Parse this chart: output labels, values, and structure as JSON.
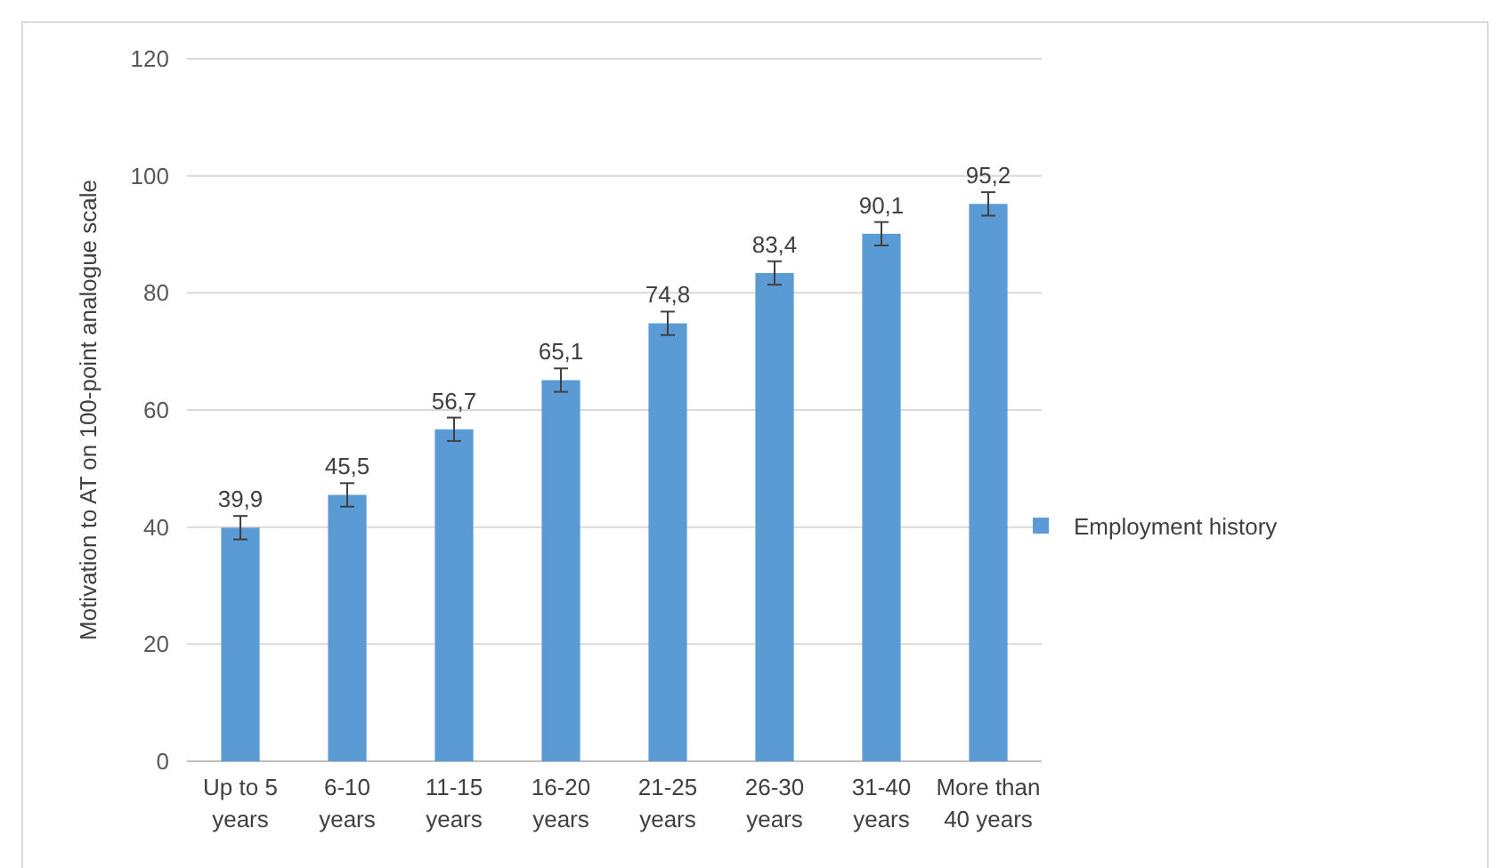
{
  "chart_data": {
    "type": "bar",
    "ylabel": "Motivation to AT on 100-point analogue scale",
    "categories": [
      "Up to 5 years",
      "6-10 years",
      "11-15 years",
      "16-20 years",
      "21-25 years",
      "26-30 years",
      "31-40 years",
      "More than 40 years"
    ],
    "series": [
      {
        "name": "Employment history",
        "color": "#5b9bd5",
        "values": [
          39.9,
          45.5,
          56.7,
          65.1,
          74.8,
          83.4,
          90.1,
          95.2
        ],
        "errors": [
          2,
          2,
          2,
          2,
          2,
          2,
          2,
          2
        ],
        "value_labels": [
          "39,9",
          "45,5",
          "56,7",
          "65,1",
          "74,8",
          "83,4",
          "90,1",
          "95,2"
        ]
      }
    ],
    "ylim": [
      0,
      120
    ],
    "yticks": [
      0,
      20,
      40,
      60,
      80,
      100,
      120
    ],
    "grid": "y",
    "legend": "right"
  }
}
